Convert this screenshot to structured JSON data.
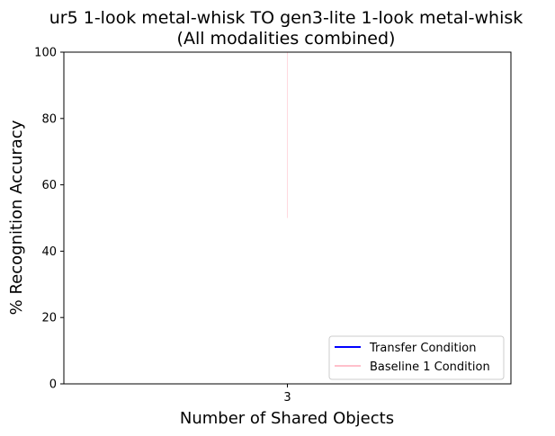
{
  "chart_data": {
    "type": "line",
    "title": "ur5 1-look metal-whisk TO gen3-lite 1-look metal-whisk",
    "subtitle": "(All modalities combined)",
    "xlabel": "Number of Shared Objects",
    "ylabel": "% Recognition Accuracy",
    "x_ticks": [
      "3"
    ],
    "xlim": [
      2.9,
      3.1
    ],
    "ylim": [
      0,
      100
    ],
    "y_ticks": [
      0,
      20,
      40,
      60,
      80,
      100
    ],
    "grid": false,
    "legend_position": "lower-right",
    "series": [
      {
        "name": "Transfer Condition",
        "color": "#0000ff",
        "points": []
      },
      {
        "name": "Baseline 1 Condition",
        "color": "#ffc0cb",
        "points": [],
        "error_bars": [
          {
            "x": 3,
            "low": 50,
            "high": 100
          }
        ]
      }
    ]
  }
}
